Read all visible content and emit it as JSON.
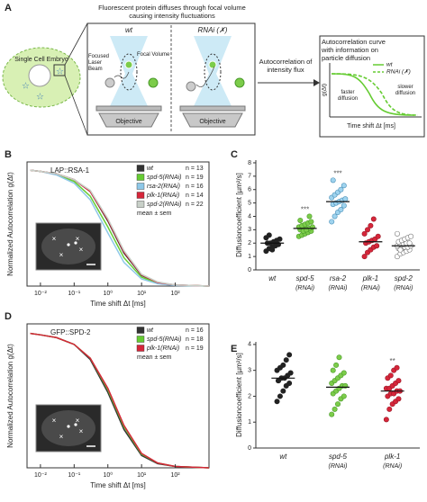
{
  "diagram": {
    "panel_label": "A",
    "embryo_label": "Single Cell Embryo",
    "focal_title": "Fluorescent protein diffuses through focal volume causing intensity fluctuations",
    "left_condition": "wt",
    "right_condition": "RNAi (✗)",
    "laser_label": "Focused Laser Beam",
    "focal_volume_label": "Focal Volume",
    "objective_left": "Objective",
    "objective_right": "Objective",
    "arrow_label": "Autocorrelation of intensity flux",
    "curve_title": "Autocorrelation curve with information on particle diffusion",
    "legend_wt": "wt",
    "legend_rnai": "RNAi (✗)",
    "faster": "faster diffusion",
    "slower": "slower diffusion",
    "ylabel": "g(Δt)",
    "xlabel": "Time shift Δt [ms]"
  },
  "chart_data": [
    {
      "type": "line",
      "panel_label": "B",
      "inset_label": "LAP::RSA-1",
      "xlabel": "Time shift Δt [ms]",
      "ylabel": "Normalized Autocorrelation g(Δt)",
      "xlog": true,
      "xlim": [
        0.004,
        1000
      ],
      "ylim": [
        0,
        1.05
      ],
      "xticks": [
        {
          "value": 0.01,
          "label": "10⁻²"
        },
        {
          "value": 0.1,
          "label": "10⁻¹"
        },
        {
          "value": 1,
          "label": "10⁰"
        },
        {
          "value": 10,
          "label": "10¹"
        },
        {
          "value": 100,
          "label": "10²"
        }
      ],
      "x": [
        0.005,
        0.01,
        0.03,
        0.1,
        0.3,
        1,
        3,
        10,
        30,
        100,
        1000
      ],
      "series": [
        {
          "name": "wt",
          "n_label": "n = 13",
          "color": "#333333",
          "values": [
            0.98,
            0.97,
            0.95,
            0.9,
            0.8,
            0.55,
            0.28,
            0.09,
            0.03,
            0.01,
            0
          ]
        },
        {
          "name": "spd-5(RNAi)",
          "n_label": "n = 19",
          "color": "#66cc33",
          "values": [
            0.98,
            0.97,
            0.945,
            0.885,
            0.76,
            0.5,
            0.24,
            0.075,
            0.025,
            0.008,
            0
          ]
        },
        {
          "name": "rsa-2(RNAi)",
          "n_label": "n = 16",
          "color": "#8ec8e8",
          "values": [
            0.98,
            0.97,
            0.94,
            0.87,
            0.73,
            0.45,
            0.2,
            0.06,
            0.02,
            0.005,
            0
          ]
        },
        {
          "name": "plk-1(RNAi)",
          "n_label": "n = 14",
          "color": "#d6263a",
          "values": [
            0.98,
            0.97,
            0.95,
            0.9,
            0.8,
            0.56,
            0.29,
            0.095,
            0.03,
            0.01,
            0
          ]
        },
        {
          "name": "spd-2(RNAi)",
          "n_label": "n = 22",
          "color": "#c8d0c8",
          "values": [
            0.98,
            0.97,
            0.95,
            0.9,
            0.81,
            0.57,
            0.3,
            0.1,
            0.035,
            0.01,
            0
          ]
        }
      ],
      "legend_note": "mean ± sem"
    },
    {
      "type": "strip",
      "panel_label": "C",
      "ylabel": "Diffusioncoefficient [µm²/s]",
      "ylim": [
        0,
        8.2
      ],
      "yticks": [
        0,
        1,
        2,
        3,
        4,
        5,
        6,
        7,
        8
      ],
      "categories": [
        "wt",
        "spd-5",
        "rsa-2",
        "plk-1",
        "spd-2"
      ],
      "category_sublabels": [
        null,
        "(RNAi)",
        "(RNAi)",
        "(RNAi)",
        "(RNAi)"
      ],
      "significance": [
        null,
        "***",
        "***",
        null,
        null
      ],
      "groups": [
        {
          "color": "#222222",
          "edgecolor": "#222222",
          "mean": 2.0,
          "values": [
            1.4,
            1.6,
            1.7,
            1.8,
            1.9,
            2.0,
            2.0,
            2.1,
            2.2,
            2.3,
            2.4,
            2.6,
            1.5
          ]
        },
        {
          "color": "#7ccc4a",
          "edgecolor": "#4a9a2a",
          "mean": 3.1,
          "values": [
            2.5,
            2.6,
            2.7,
            2.8,
            2.9,
            3.0,
            3.0,
            3.1,
            3.1,
            3.2,
            3.2,
            3.3,
            3.4,
            3.5,
            3.6,
            3.7,
            2.9,
            3.0,
            4.0
          ]
        },
        {
          "color": "#9fd3ee",
          "edgecolor": "#4a90b8",
          "mean": 5.1,
          "values": [
            3.6,
            4.0,
            4.3,
            4.5,
            4.8,
            4.9,
            5.0,
            5.1,
            5.2,
            5.3,
            5.4,
            5.6,
            5.8,
            6.0,
            6.3,
            6.7
          ]
        },
        {
          "color": "#d6263a",
          "edgecolor": "#9a1a28",
          "mean": 2.1,
          "values": [
            1.0,
            1.3,
            1.5,
            1.7,
            1.8,
            2.0,
            2.1,
            2.2,
            2.3,
            2.5,
            2.7,
            3.0,
            3.3,
            3.8
          ]
        },
        {
          "color": "#ffffff",
          "edgecolor": "#777777",
          "mean": 1.8,
          "values": [
            1.0,
            1.2,
            1.3,
            1.4,
            1.5,
            1.6,
            1.6,
            1.7,
            1.7,
            1.8,
            1.8,
            1.9,
            1.9,
            2.0,
            2.0,
            2.1,
            2.2,
            2.3,
            2.4,
            2.5,
            2.7,
            1.5
          ]
        }
      ]
    },
    {
      "type": "line",
      "panel_label": "D",
      "inset_label": "GFP::SPD-2",
      "xlabel": "Time shift Δt [ms]",
      "ylabel": "Normalized Autocorrelation g(Δt)",
      "xlog": true,
      "xlim": [
        0.004,
        1000
      ],
      "ylim": [
        0,
        1.05
      ],
      "xticks": [
        {
          "value": 0.01,
          "label": "10⁻²"
        },
        {
          "value": 0.1,
          "label": "10⁻¹"
        },
        {
          "value": 1,
          "label": "10⁰"
        },
        {
          "value": 10,
          "label": "10¹"
        },
        {
          "value": 100,
          "label": "10²"
        }
      ],
      "x": [
        0.005,
        0.01,
        0.03,
        0.1,
        0.3,
        1,
        3,
        10,
        30,
        100,
        1000
      ],
      "series": [
        {
          "name": "wt",
          "n_label": "n = 16",
          "color": "#333333",
          "values": [
            0.98,
            0.97,
            0.95,
            0.9,
            0.79,
            0.55,
            0.28,
            0.09,
            0.03,
            0.01,
            0
          ]
        },
        {
          "name": "spd-5(RNAi)",
          "n_label": "n = 18",
          "color": "#66cc33",
          "values": [
            0.98,
            0.97,
            0.95,
            0.9,
            0.8,
            0.57,
            0.3,
            0.1,
            0.035,
            0.01,
            0
          ]
        },
        {
          "name": "plk-1(RNAi)",
          "n_label": "n = 19",
          "color": "#d6263a",
          "values": [
            0.98,
            0.97,
            0.95,
            0.9,
            0.8,
            0.58,
            0.31,
            0.105,
            0.035,
            0.01,
            0
          ]
        }
      ],
      "legend_note": "mean ± sem"
    },
    {
      "type": "strip",
      "panel_label": "E",
      "ylabel": "Diffusioncoefficient [µm²/s]",
      "ylim": [
        0,
        4.1
      ],
      "yticks": [
        0,
        1,
        2,
        3,
        4
      ],
      "categories": [
        "wt",
        "spd-5",
        "plk-1"
      ],
      "category_sublabels": [
        null,
        "(RNAi)",
        "(RNAi)"
      ],
      "significance": [
        null,
        null,
        "**"
      ],
      "groups": [
        {
          "color": "#222222",
          "edgecolor": "#222222",
          "mean": 2.7,
          "values": [
            1.8,
            2.0,
            2.2,
            2.4,
            2.5,
            2.6,
            2.7,
            2.7,
            2.8,
            2.9,
            3.0,
            3.1,
            3.2,
            3.4,
            3.6,
            2.6
          ]
        },
        {
          "color": "#7ccc4a",
          "edgecolor": "#4a9a2a",
          "mean": 2.35,
          "values": [
            1.3,
            1.5,
            1.7,
            1.9,
            2.0,
            2.1,
            2.2,
            2.3,
            2.4,
            2.4,
            2.5,
            2.6,
            2.7,
            2.8,
            2.9,
            3.0,
            3.2,
            3.5
          ]
        },
        {
          "color": "#d6263a",
          "edgecolor": "#9a1a28",
          "mean": 2.2,
          "values": [
            1.1,
            1.5,
            1.7,
            1.8,
            1.9,
            2.0,
            2.1,
            2.1,
            2.2,
            2.2,
            2.3,
            2.3,
            2.4,
            2.5,
            2.6,
            2.7,
            2.8,
            3.0,
            3.1
          ]
        }
      ]
    }
  ]
}
